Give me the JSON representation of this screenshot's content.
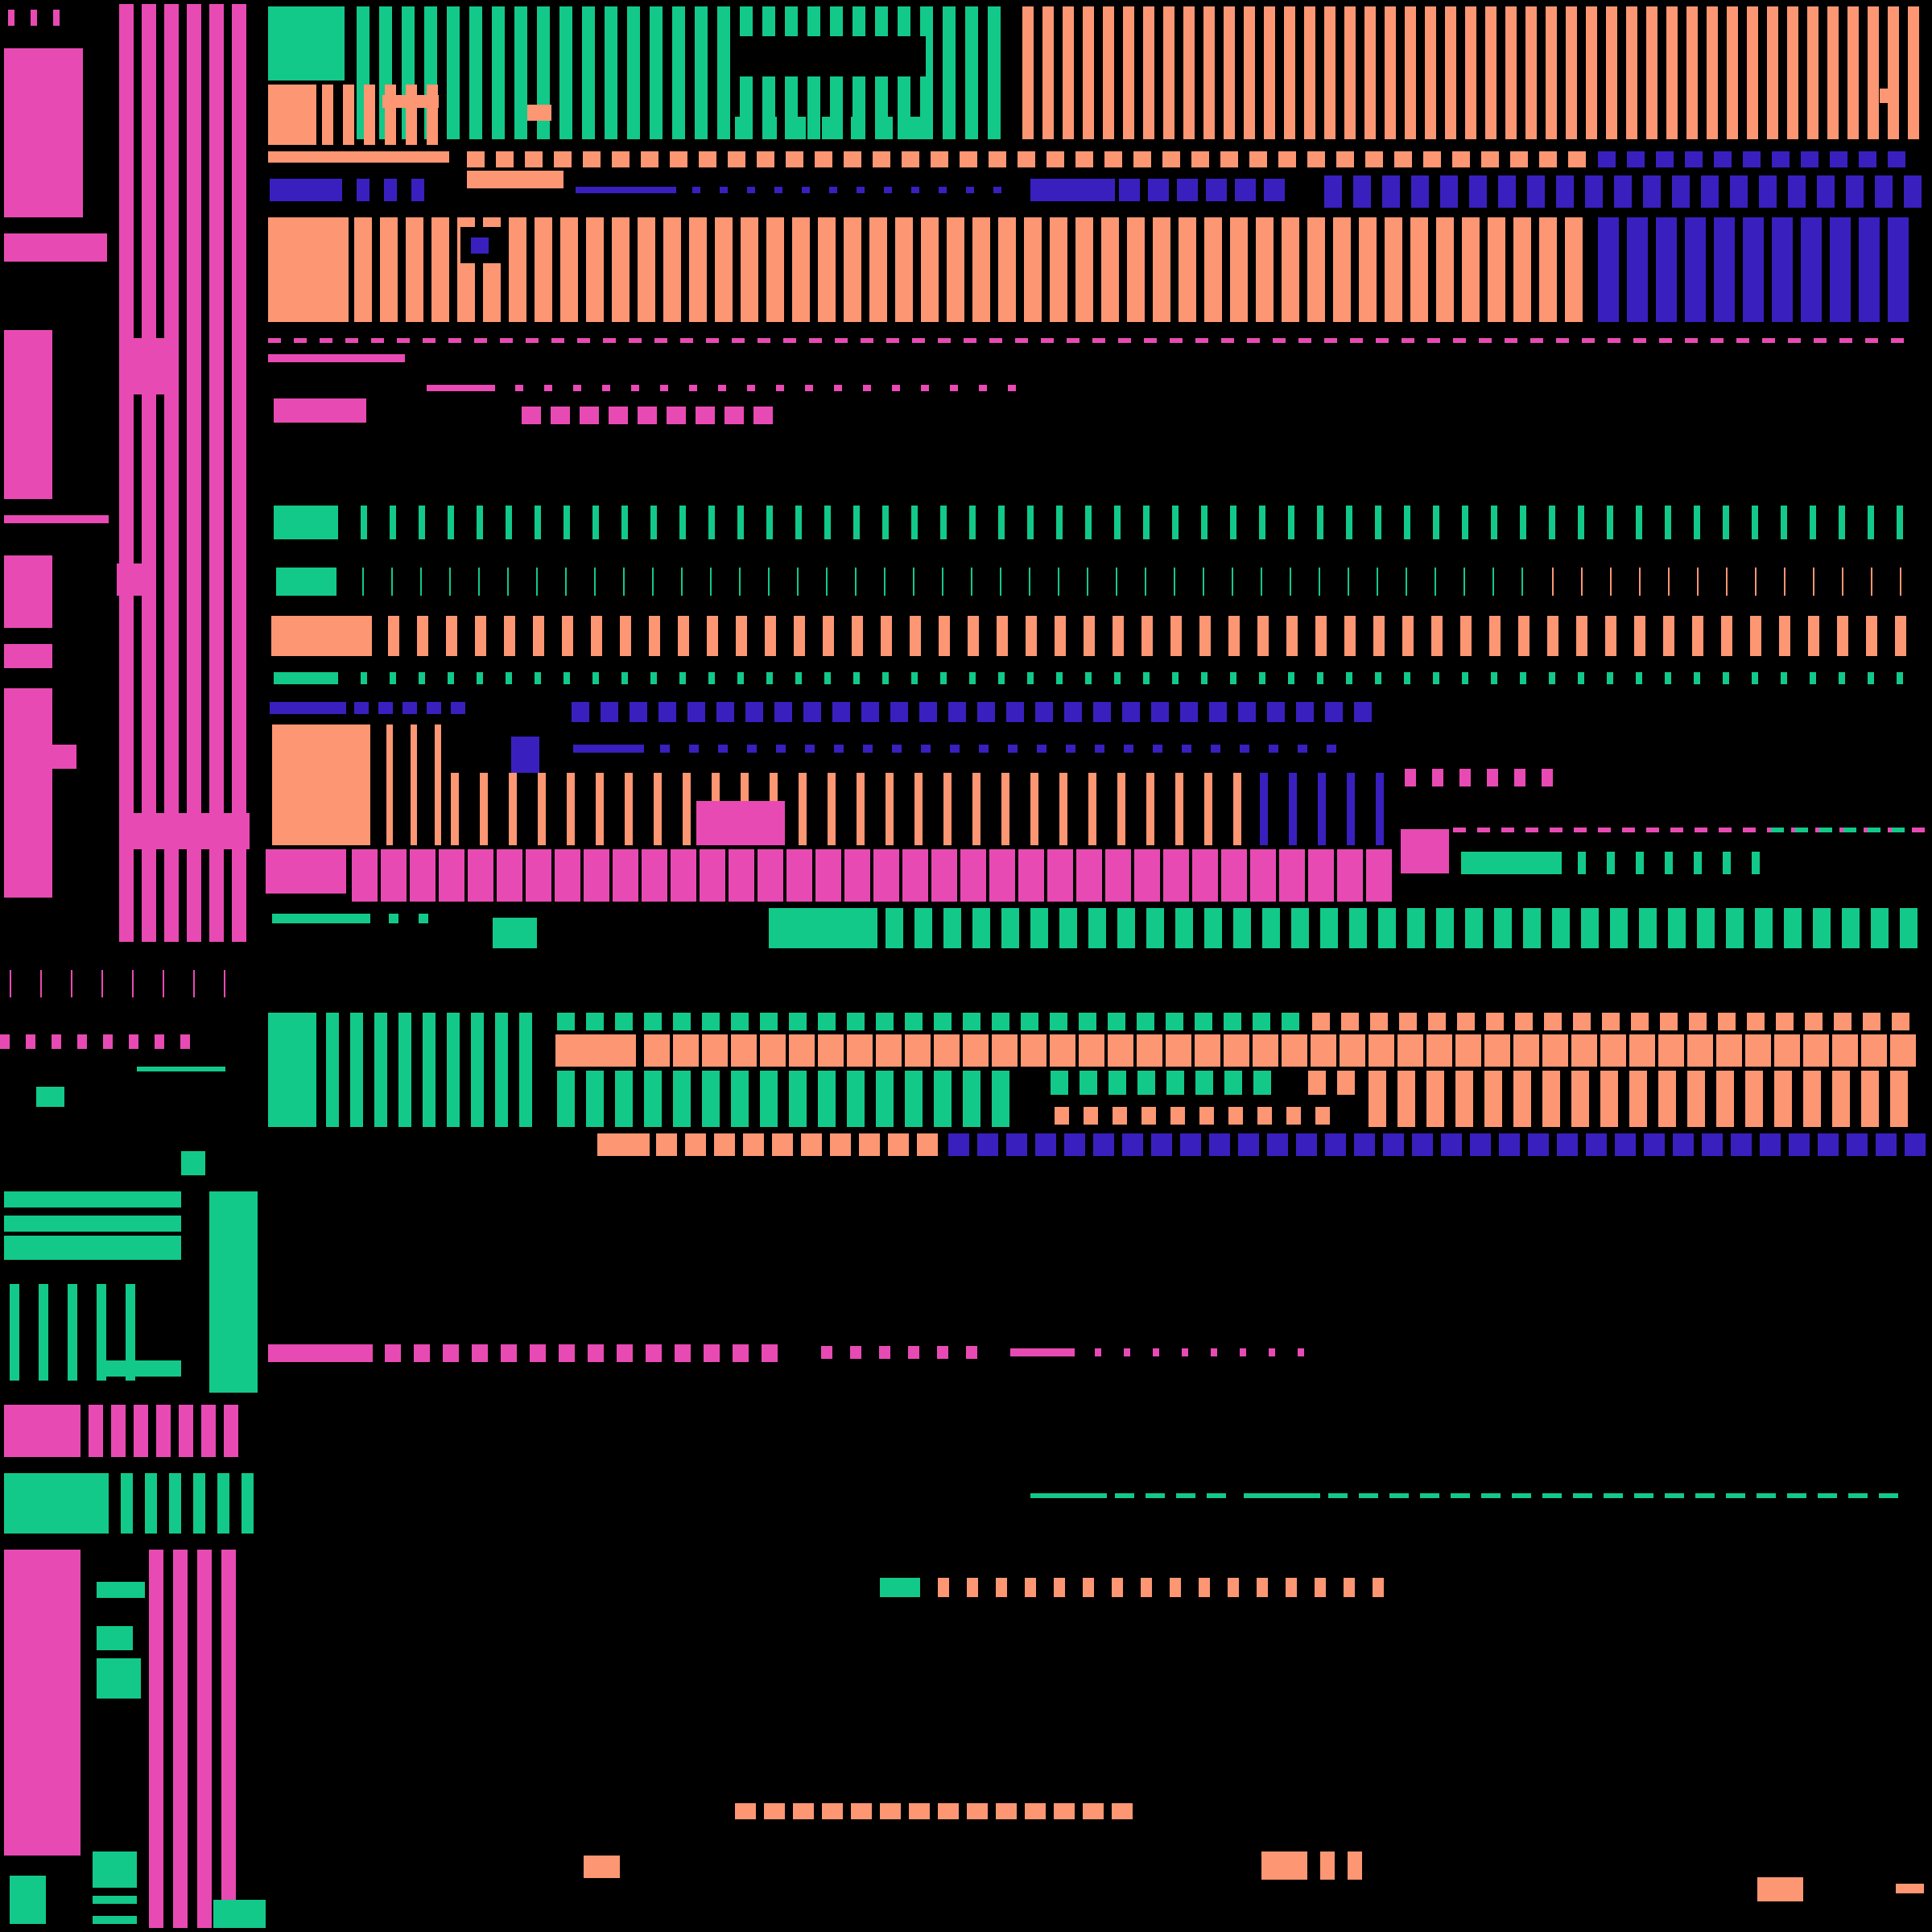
{
  "palette": {
    "background": "#000000",
    "pink": "#e84ab3",
    "green": "#12c98a",
    "salmon": "#fd9672",
    "indigo": "#3a1fbf"
  },
  "legend_text": []
}
